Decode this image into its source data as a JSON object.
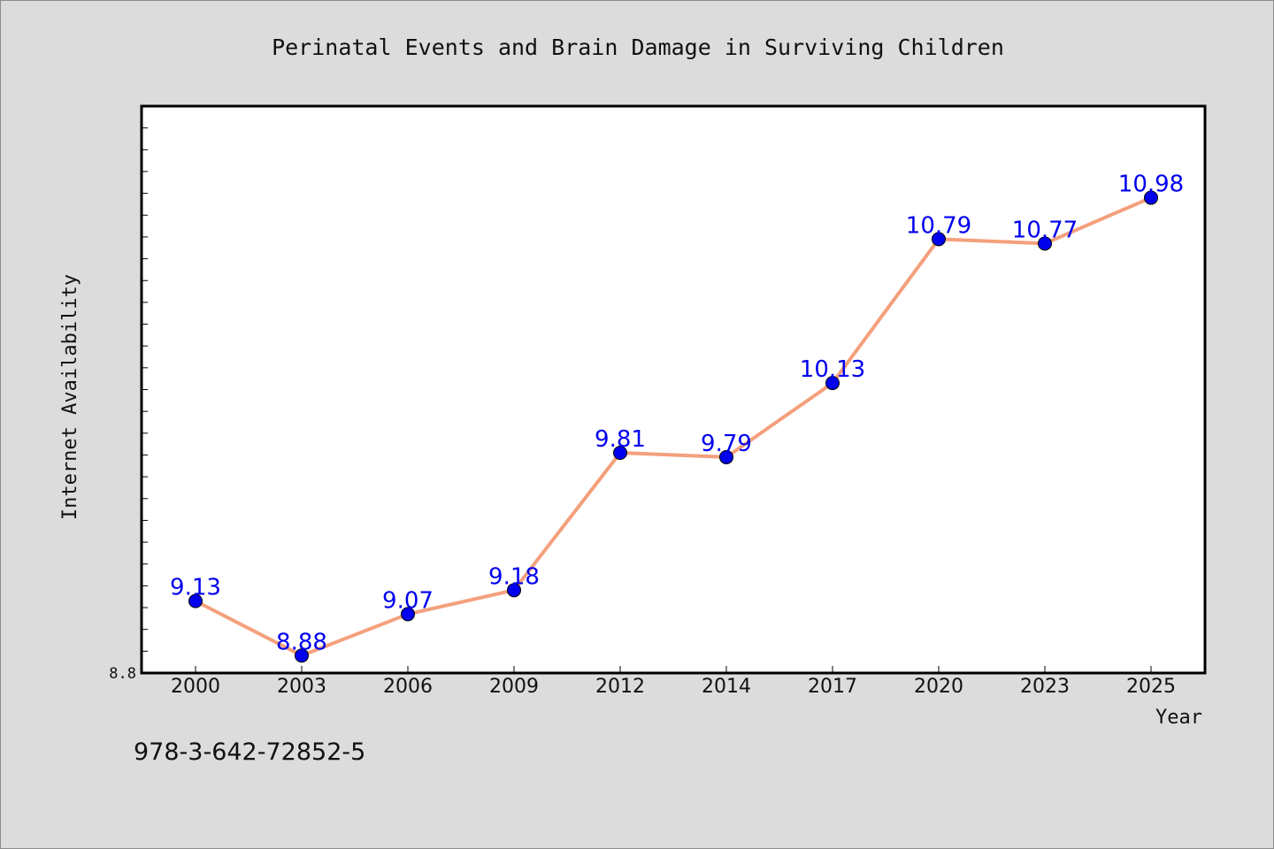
{
  "chart_data": {
    "type": "line",
    "title": "Perinatal Events and Brain Damage in Surviving Children",
    "xlabel": "Year",
    "ylabel": "Internet Availability",
    "categories": [
      "2000",
      "2003",
      "2006",
      "2009",
      "2012",
      "2014",
      "2017",
      "2020",
      "2023",
      "2025"
    ],
    "series": [
      {
        "values": [
          9.13,
          8.88,
          9.07,
          9.18,
          9.81,
          9.79,
          10.13,
          10.79,
          10.77,
          10.98
        ],
        "data_labels": [
          "9.13",
          "8.88",
          "9.07",
          "9.18",
          "9.81",
          "9.79",
          "10.13",
          "10.79",
          "10.77",
          "10.98"
        ]
      }
    ],
    "ylim": [
      8.8,
      11.4
    ],
    "yticks_labeled": [
      "8.8"
    ],
    "grid": false,
    "colors": {
      "line": "#f4a07c",
      "marker": "#0000ee",
      "label": "#0000ee",
      "background": "#dcdcdc",
      "plot_bg": "#ffffff"
    }
  },
  "footer": {
    "isbn": "978-3-642-72852-5"
  }
}
